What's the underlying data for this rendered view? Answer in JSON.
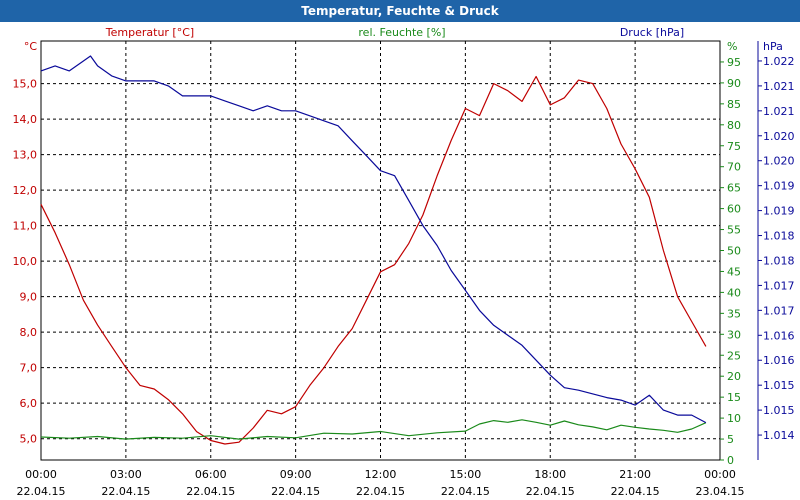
{
  "window": {
    "title": "Temperatur, Feuchte & Druck"
  },
  "colors": {
    "temperature": "#c00000",
    "humidity": "#1a8a1a",
    "pressure": "#0a0a9a",
    "grid": "#000000",
    "titlebar": "#1f64a8"
  },
  "chart_data": {
    "type": "line",
    "title": "Temperatur, Feuchte & Druck",
    "x_ticks": [
      {
        "time": "00:00",
        "date": "22.04.15"
      },
      {
        "time": "03:00",
        "date": "22.04.15"
      },
      {
        "time": "06:00",
        "date": "22.04.15"
      },
      {
        "time": "09:00",
        "date": "22.04.15"
      },
      {
        "time": "12:00",
        "date": "22.04.15"
      },
      {
        "time": "15:00",
        "date": "22.04.15"
      },
      {
        "time": "18:00",
        "date": "22.04.15"
      },
      {
        "time": "21:00",
        "date": "22.04.15"
      },
      {
        "time": "00:00",
        "date": "23.04.15"
      }
    ],
    "xlim_hours": [
      0,
      24
    ],
    "axes": {
      "temperature": {
        "label": "Temperatur [°C]",
        "unit": "°C",
        "ylim": [
          4.4,
          16.2
        ],
        "ticks": [
          5,
          6,
          7,
          8,
          9,
          10,
          11,
          12,
          13,
          14,
          15
        ],
        "tick_labels": [
          "5,0",
          "6,0",
          "7,0",
          "8,0",
          "9,0",
          "10,0",
          "11,0",
          "12,0",
          "13,0",
          "14,0",
          "15,0"
        ]
      },
      "humidity": {
        "label": "rel. Feuchte [%]",
        "unit": "%",
        "ylim": [
          0,
          100
        ],
        "ticks": [
          0,
          5,
          10,
          15,
          20,
          25,
          30,
          35,
          40,
          45,
          50,
          55,
          60,
          65,
          70,
          75,
          80,
          85,
          90,
          95
        ],
        "tick_labels": [
          "0",
          "5",
          "10",
          "15",
          "20",
          "25",
          "30",
          "35",
          "40",
          "45",
          "50",
          "55",
          "60",
          "65",
          "70",
          "75",
          "80",
          "85",
          "90",
          "95"
        ]
      },
      "pressure": {
        "label": "Druck [hPa]",
        "unit": "hPa",
        "ylim": [
          1013.5,
          1021.9
        ],
        "ticks": [
          1014.0,
          1014.5,
          1015.0,
          1015.5,
          1016.0,
          1016.5,
          1017.0,
          1017.5,
          1018.0,
          1018.5,
          1019.0,
          1019.5,
          1020.0,
          1020.5,
          1021.0,
          1021.5
        ],
        "tick_labels": [
          "1.014",
          "1.015",
          "1.015",
          "1.016",
          "1.016",
          "1.017",
          "1.017",
          "1.018",
          "1.018",
          "1.019",
          "1.019",
          "1.020",
          "1.020",
          "1.021",
          "1.021",
          "1.022"
        ]
      }
    },
    "series": [
      {
        "name": "Temperatur [°C]",
        "axis": "temperature",
        "color": "#c00000",
        "points": [
          [
            0,
            11.6
          ],
          [
            0.5,
            10.8
          ],
          [
            1,
            9.9
          ],
          [
            1.5,
            8.9
          ],
          [
            2,
            8.2
          ],
          [
            2.5,
            7.6
          ],
          [
            3,
            7.0
          ],
          [
            3.5,
            6.5
          ],
          [
            4,
            6.4
          ],
          [
            4.5,
            6.1
          ],
          [
            5,
            5.7
          ],
          [
            5.5,
            5.2
          ],
          [
            6,
            4.95
          ],
          [
            6.5,
            4.85
          ],
          [
            7,
            4.9
          ],
          [
            7.5,
            5.3
          ],
          [
            8,
            5.8
          ],
          [
            8.5,
            5.7
          ],
          [
            9,
            5.9
          ],
          [
            9.5,
            6.5
          ],
          [
            10,
            7.0
          ],
          [
            10.5,
            7.6
          ],
          [
            11,
            8.1
          ],
          [
            11.5,
            8.9
          ],
          [
            12,
            9.7
          ],
          [
            12.5,
            9.9
          ],
          [
            13,
            10.5
          ],
          [
            13.5,
            11.3
          ],
          [
            14,
            12.4
          ],
          [
            14.5,
            13.4
          ],
          [
            15,
            14.3
          ],
          [
            15.5,
            14.1
          ],
          [
            16,
            15.0
          ],
          [
            16.5,
            14.8
          ],
          [
            17,
            14.5
          ],
          [
            17.5,
            15.2
          ],
          [
            18,
            14.4
          ],
          [
            18.5,
            14.6
          ],
          [
            19,
            15.1
          ],
          [
            19.5,
            15.0
          ],
          [
            20,
            14.3
          ],
          [
            20.5,
            13.3
          ],
          [
            21,
            12.6
          ],
          [
            21.5,
            11.8
          ],
          [
            22,
            10.3
          ],
          [
            22.5,
            9.0
          ],
          [
            23,
            8.3
          ],
          [
            23.5,
            7.6
          ]
        ]
      },
      {
        "name": "rel. Feuchte [%]",
        "axis": "humidity",
        "color": "#1a8a1a",
        "points": [
          [
            0,
            5.5
          ],
          [
            1,
            5.2
          ],
          [
            2,
            5.6
          ],
          [
            3,
            5.0
          ],
          [
            4,
            5.4
          ],
          [
            5,
            5.2
          ],
          [
            6,
            5.8
          ],
          [
            7,
            5.0
          ],
          [
            8,
            5.6
          ],
          [
            9,
            5.3
          ],
          [
            10,
            6.4
          ],
          [
            11,
            6.2
          ],
          [
            12,
            6.8
          ],
          [
            13,
            5.8
          ],
          [
            14,
            6.5
          ],
          [
            15,
            6.9
          ],
          [
            15.5,
            8.6
          ],
          [
            16,
            9.4
          ],
          [
            16.5,
            9.0
          ],
          [
            17,
            9.6
          ],
          [
            17.5,
            9.0
          ],
          [
            18,
            8.3
          ],
          [
            18.5,
            9.3
          ],
          [
            19,
            8.4
          ],
          [
            19.5,
            7.9
          ],
          [
            20,
            7.2
          ],
          [
            20.5,
            8.3
          ],
          [
            21,
            7.8
          ],
          [
            21.5,
            7.4
          ],
          [
            22,
            7.1
          ],
          [
            22.5,
            6.6
          ],
          [
            23,
            7.4
          ],
          [
            23.5,
            8.9
          ]
        ]
      },
      {
        "name": "Druck [hPa]",
        "axis": "pressure",
        "color": "#0a0a9a",
        "points": [
          [
            0,
            1021.3
          ],
          [
            0.5,
            1021.4
          ],
          [
            1,
            1021.3
          ],
          [
            1.5,
            1021.5
          ],
          [
            1.75,
            1021.6
          ],
          [
            2,
            1021.4
          ],
          [
            2.5,
            1021.2
          ],
          [
            3,
            1021.1
          ],
          [
            4,
            1021.1
          ],
          [
            4.5,
            1021.0
          ],
          [
            5,
            1020.8
          ],
          [
            6,
            1020.8
          ],
          [
            6.5,
            1020.7
          ],
          [
            7,
            1020.6
          ],
          [
            7.5,
            1020.5
          ],
          [
            8,
            1020.6
          ],
          [
            8.5,
            1020.5
          ],
          [
            9,
            1020.5
          ],
          [
            9.5,
            1020.4
          ],
          [
            10,
            1020.3
          ],
          [
            10.5,
            1020.2
          ],
          [
            11,
            1019.9
          ],
          [
            11.5,
            1019.6
          ],
          [
            12,
            1019.3
          ],
          [
            12.5,
            1019.2
          ],
          [
            13,
            1018.7
          ],
          [
            13.5,
            1018.2
          ],
          [
            14,
            1017.8
          ],
          [
            14.5,
            1017.3
          ],
          [
            15,
            1016.9
          ],
          [
            15.5,
            1016.5
          ],
          [
            16,
            1016.2
          ],
          [
            16.5,
            1016.0
          ],
          [
            17,
            1015.8
          ],
          [
            17.5,
            1015.5
          ],
          [
            18,
            1015.2
          ],
          [
            18.5,
            1014.95
          ],
          [
            19,
            1014.9
          ],
          [
            20,
            1014.75
          ],
          [
            20.5,
            1014.7
          ],
          [
            21,
            1014.6
          ],
          [
            21.5,
            1014.8
          ],
          [
            22,
            1014.5
          ],
          [
            22.5,
            1014.4
          ],
          [
            23,
            1014.4
          ],
          [
            23.5,
            1014.25
          ]
        ]
      }
    ]
  }
}
